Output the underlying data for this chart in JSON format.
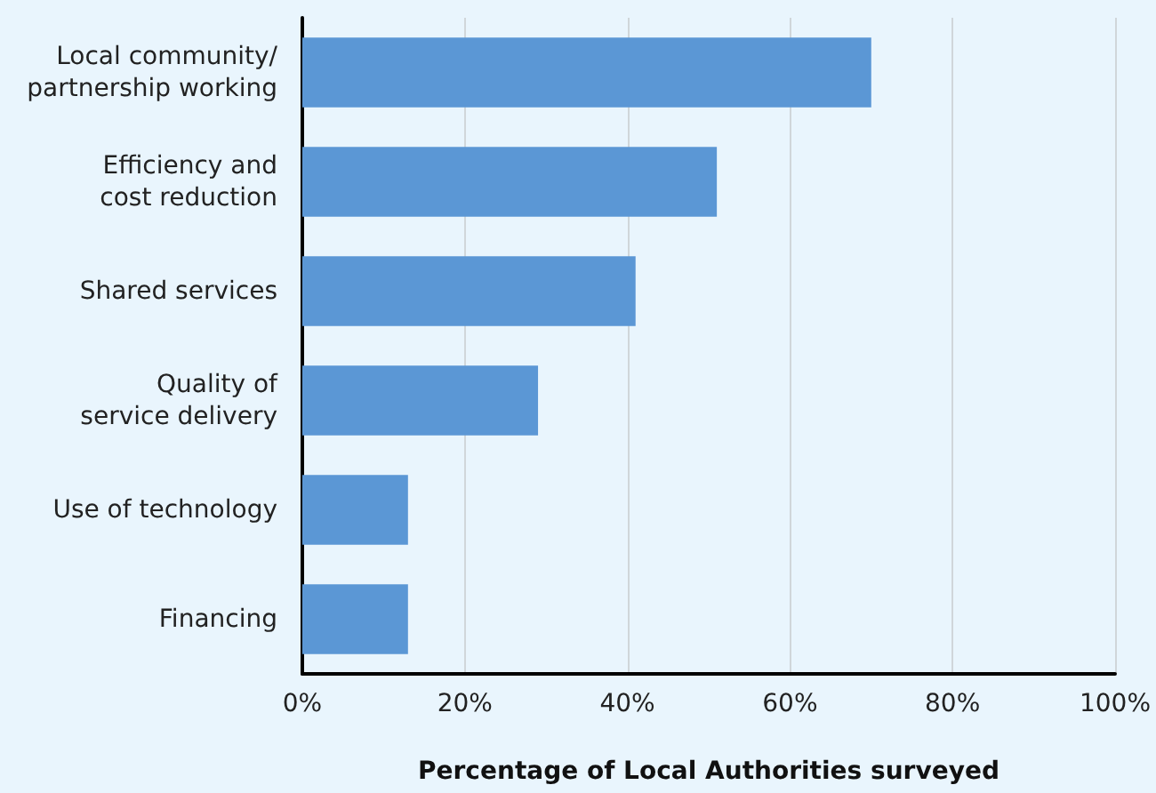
{
  "chart_data": {
    "type": "bar",
    "orientation": "horizontal",
    "categories": [
      "Local community/\npartnership working",
      "Efficiency and\ncost reduction",
      "Shared services",
      "Quality of\nservice delivery",
      "Use of technology",
      "Financing"
    ],
    "values": [
      70,
      51,
      41,
      29,
      13,
      13
    ],
    "color": "#5b97d5",
    "xlim": [
      0,
      100
    ],
    "xticks": [
      {
        "value": 0,
        "label": "0%"
      },
      {
        "value": 20,
        "label": "20%"
      },
      {
        "value": 40,
        "label": "40%"
      },
      {
        "value": 60,
        "label": "60%"
      },
      {
        "value": 80,
        "label": "80%"
      },
      {
        "value": 100,
        "label": "100%"
      }
    ],
    "xlabel": "Percentage of Local Authorities surveyed",
    "grid": "x"
  }
}
